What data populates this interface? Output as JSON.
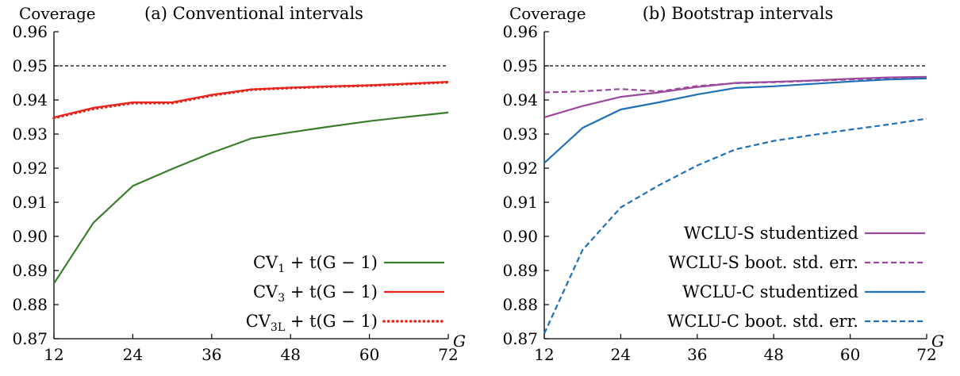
{
  "chart_data": [
    {
      "type": "line",
      "title": "(a) Conventional intervals",
      "ylabel": "Coverage",
      "xlabel": "G",
      "xlim": [
        12,
        72
      ],
      "ylim": [
        0.87,
        0.96
      ],
      "xticks": [
        "12",
        "24",
        "36",
        "48",
        "60",
        "72"
      ],
      "yticks": [
        "0.87",
        "0.88",
        "0.89",
        "0.90",
        "0.91",
        "0.92",
        "0.93",
        "0.94",
        "0.95",
        "0.96"
      ],
      "reference_line": 0.95,
      "legend_position": "bottom-right",
      "x": [
        12,
        18,
        24,
        30,
        36,
        42,
        48,
        54,
        60,
        66,
        72
      ],
      "series": [
        {
          "name_main": "CV",
          "name_sub": "1",
          "name_rest": " + t(G − 1)",
          "color": "#3a7d2c",
          "style": "solid",
          "values": [
            0.8862,
            0.904,
            0.9148,
            0.9198,
            0.9245,
            0.9287,
            0.9305,
            0.9322,
            0.9338,
            0.9351,
            0.9363
          ]
        },
        {
          "name_main": "CV",
          "name_sub": "3",
          "name_rest": " + t(G − 1)",
          "color": "#e8231c",
          "style": "solid",
          "values": [
            0.9349,
            0.9377,
            0.9393,
            0.9393,
            0.9415,
            0.9431,
            0.9436,
            0.944,
            0.9443,
            0.9448,
            0.9453
          ]
        },
        {
          "name_main": "CV",
          "name_sub": "3L",
          "name_rest": " + t(G − 1)",
          "color": "#e8231c",
          "style": "dotted",
          "values": [
            0.9347,
            0.9374,
            0.9391,
            0.9391,
            0.9413,
            0.943,
            0.9435,
            0.9439,
            0.9442,
            0.9447,
            0.9452
          ]
        }
      ]
    },
    {
      "type": "line",
      "title": "(b) Bootstrap intervals",
      "ylabel": "Coverage",
      "xlabel": "G",
      "xlim": [
        12,
        72
      ],
      "ylim": [
        0.87,
        0.96
      ],
      "xticks": [
        "12",
        "24",
        "36",
        "48",
        "60",
        "72"
      ],
      "yticks": [
        "0.87",
        "0.88",
        "0.89",
        "0.90",
        "0.91",
        "0.92",
        "0.93",
        "0.94",
        "0.95",
        "0.96"
      ],
      "reference_line": 0.95,
      "legend_position": "bottom-right",
      "x": [
        12,
        18,
        24,
        30,
        36,
        42,
        48,
        54,
        60,
        66,
        72
      ],
      "series": [
        {
          "name": "WCLU-S studentized",
          "color": "#9a4a9c",
          "style": "solid",
          "values": [
            0.9349,
            0.9382,
            0.9409,
            0.9422,
            0.9438,
            0.945,
            0.9453,
            0.9457,
            0.9462,
            0.9466,
            0.9468
          ]
        },
        {
          "name": "WCLU-S boot. std. err.",
          "color": "#9a4a9c",
          "style": "dashed",
          "values": [
            0.9422,
            0.9425,
            0.9432,
            0.9425,
            0.9441,
            0.9449,
            0.9452,
            0.9456,
            0.946,
            0.9464,
            0.9466
          ]
        },
        {
          "name": "WCLU-C studentized",
          "color": "#1f70b8",
          "style": "solid",
          "values": [
            0.9215,
            0.9318,
            0.9372,
            0.9393,
            0.9416,
            0.9435,
            0.944,
            0.9447,
            0.9454,
            0.946,
            0.9463
          ]
        },
        {
          "name": "WCLU-C boot. std. err.",
          "color": "#1f70b8",
          "style": "dashed",
          "values": [
            0.8715,
            0.896,
            0.9085,
            0.915,
            0.9208,
            0.9255,
            0.928,
            0.9297,
            0.9313,
            0.9328,
            0.9345
          ]
        }
      ]
    }
  ]
}
